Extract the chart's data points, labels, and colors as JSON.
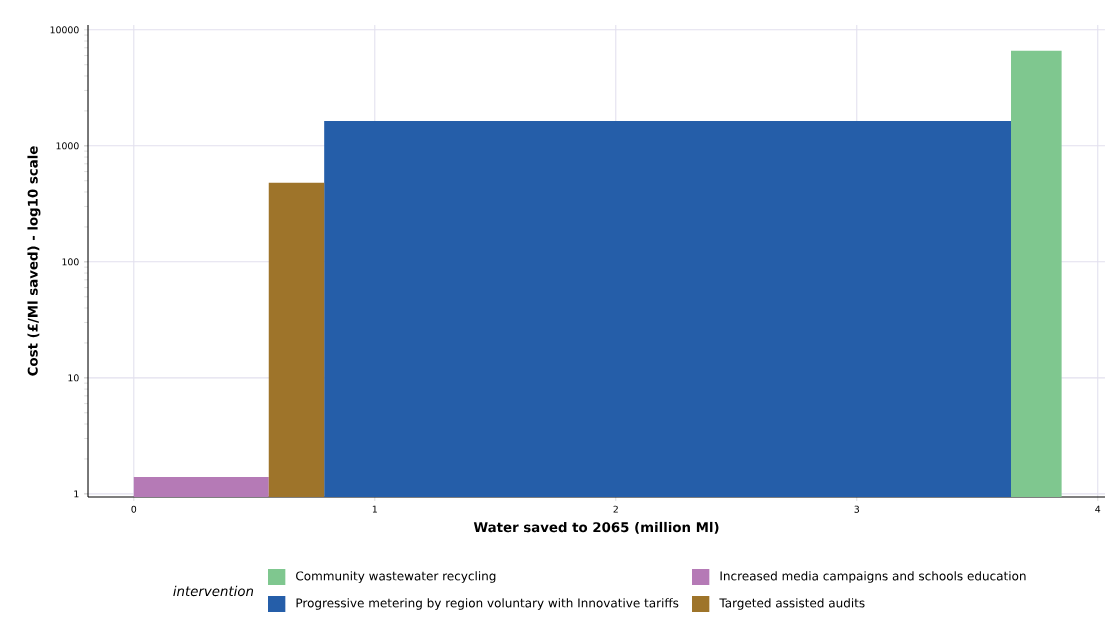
{
  "chart_data": {
    "type": "histogram",
    "xlabel": "Water saved to 2065 (million Ml)",
    "ylabel": "Cost (£/Ml saved) - log10 scale",
    "legend_title": "intervention",
    "legend": "bottom",
    "log": true,
    "grid": true,
    "xlim": [
      -0.19,
      4.03
    ],
    "ylim": [
      0.94,
      11000
    ],
    "xticks": [
      0,
      1,
      2,
      3,
      4
    ],
    "yticks": [
      1,
      10,
      100,
      1000,
      10000
    ],
    "bins": [
      0,
      0.56,
      0.79,
      3.64,
      3.85
    ],
    "series": [
      {
        "name": "Community wastewater recycling",
        "color": "#7fc78f",
        "values": [
          null,
          null,
          null,
          6600
        ]
      },
      {
        "name": "Progressive metering by region voluntary with Innovative tariffs",
        "color": "#255ea9",
        "values": [
          null,
          null,
          1640,
          null
        ]
      },
      {
        "name": "Increased media campaigns and schools education",
        "color": "#b57ab6",
        "values": [
          1.4,
          null,
          null,
          null
        ]
      },
      {
        "name": "Targeted assisted audits",
        "color": "#9e742a",
        "values": [
          null,
          480,
          null,
          null
        ]
      }
    ]
  }
}
